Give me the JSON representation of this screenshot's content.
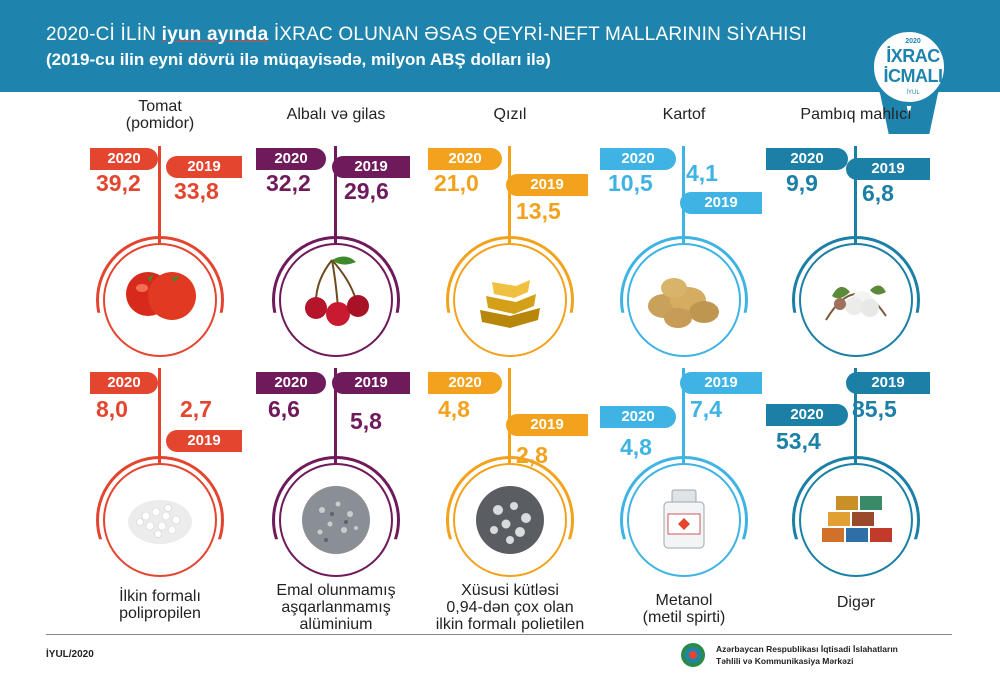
{
  "header": {
    "title_part1": "2020-Cİ İLİN ",
    "title_bold": "iyun ayında",
    "title_part2": " İXRAC OLUNAN ƏSAS QEYRİ-NEFT MALLARININ SİYAHISI",
    "subtitle": "(2019-cu ilin eyni dövrü ilə müqayisədə, milyon ABŞ dolları ilə)"
  },
  "badge": {
    "year": "2020",
    "line1": "İXRAC",
    "line2": "İCMALI",
    "month": "İYUL"
  },
  "chart_data": {
    "type": "table",
    "unit": "milyon ABŞ dolları",
    "series": [
      {
        "name": "2020"
      },
      {
        "name": "2019"
      }
    ],
    "items": [
      {
        "name": "Tomat\n(pomidor)",
        "v2020": "39,2",
        "v2019": "33,8",
        "color": "#e4452f",
        "icon": "tomato-icon"
      },
      {
        "name": "Albalı və gilas",
        "v2020": "32,2",
        "v2019": "29,6",
        "color": "#6e1a5b",
        "icon": "cherry-icon"
      },
      {
        "name": "Qızıl",
        "v2020": "21,0",
        "v2019": "13,5",
        "color": "#f2a21d",
        "icon": "gold-icon"
      },
      {
        "name": "Kartof",
        "v2020": "10,5",
        "v2019": "4,1",
        "color": "#3fb3e3",
        "icon": "potato-icon"
      },
      {
        "name": "Pambıq mahlıcı",
        "v2020": "9,9",
        "v2019": "6,8",
        "color": "#1b7fa6",
        "icon": "cotton-icon"
      },
      {
        "name": "İlkin formalı\npolipropilen",
        "v2020": "8,0",
        "v2019": "2,7",
        "color": "#e4452f",
        "icon": "granules-icon"
      },
      {
        "name": "Emal olunmamış\naşqarlanmamış\nalüminium",
        "v2020": "6,6",
        "v2019": "5,8",
        "color": "#6e1a5b",
        "icon": "aluminium-icon"
      },
      {
        "name": "Xüsusi kütləsi\n0,94-dən çox olan\nilkin formalı polietilen",
        "v2020": "4,8",
        "v2019": "2,8",
        "color": "#f2a21d",
        "icon": "polyethylene-icon"
      },
      {
        "name": "Metanol\n(metil spirti)",
        "v2020": "4,8",
        "v2019": "7,4",
        "color": "#3fb3e3",
        "icon": "bottle-icon"
      },
      {
        "name": "Digər",
        "v2020": "53,4",
        "v2019": "85,5",
        "color": "#1b7fa6",
        "icon": "containers-icon"
      }
    ]
  },
  "footer": {
    "date": "İYUL/2020",
    "org_line1": "Azərbaycan Respublikası İqtisadi İslahatların",
    "org_line2": "Təhlili və Kommunikasiya Mərkəzi"
  }
}
